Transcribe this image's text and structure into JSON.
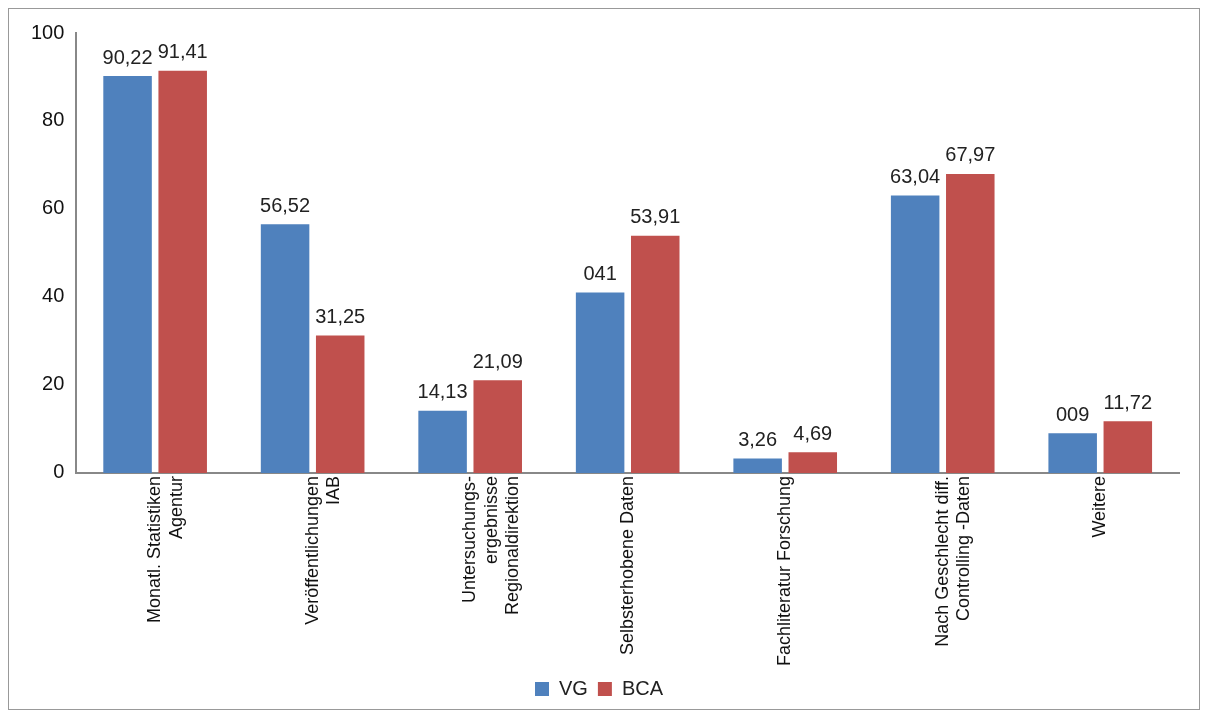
{
  "chart_data": {
    "type": "bar",
    "categories": [
      "Monatl. Statistiken\nAgentur",
      "Veröffentlichungen\nIAB",
      "Untersuchungs-\nergebnisse\nRegionaldirektion",
      "Selbsterhobene Daten",
      "Fachliteratur Forschung",
      "Nach Geschlecht diff.\nControlling -Daten",
      "Weitere"
    ],
    "series": [
      {
        "name": "VG",
        "color": "#4f81bd",
        "values": [
          90.22,
          56.52,
          14.13,
          41,
          3.26,
          63.04,
          9
        ],
        "value_labels": [
          "90,22",
          "56,52",
          "14,13",
          "041",
          "3,26",
          "63,04",
          "009"
        ]
      },
      {
        "name": "BCA",
        "color": "#c0504d",
        "values": [
          91.41,
          31.25,
          21.09,
          53.91,
          4.69,
          67.97,
          11.72
        ],
        "value_labels": [
          "91,41",
          "31,25",
          "21,09",
          "53,91",
          "4,69",
          "67,97",
          "11,72"
        ]
      }
    ],
    "ylim": [
      0,
      100
    ],
    "yticks": [
      0,
      20,
      40,
      60,
      80,
      100
    ],
    "grid": false,
    "legend": "bottom"
  }
}
